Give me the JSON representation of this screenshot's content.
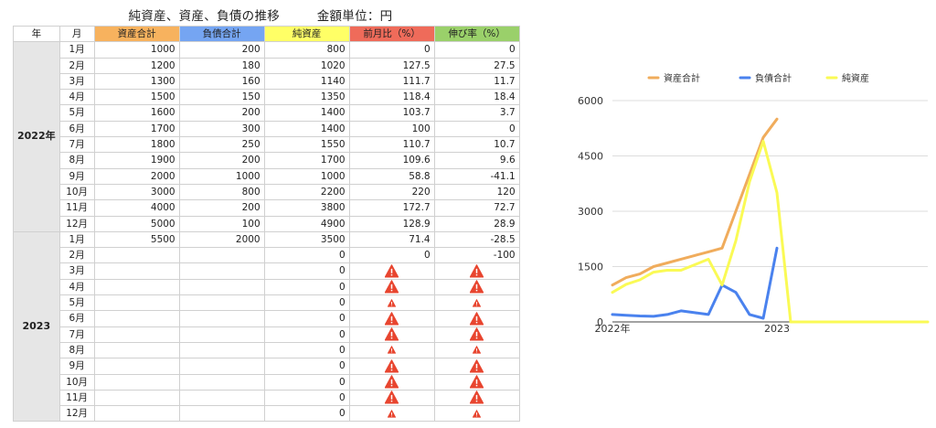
{
  "title": {
    "main": "純資産、資産、負債の推移",
    "unit": "金額単位：円"
  },
  "table": {
    "headers": {
      "year": "年",
      "month": "月",
      "assets": "資産合計",
      "liabilities": "負債合計",
      "net": "純資産",
      "mom": "前月比（%）",
      "growth": "伸び率（%）"
    },
    "years": [
      {
        "label": "2022年",
        "rows": [
          {
            "month": "1月",
            "assets": "1000",
            "liabilities": "200",
            "net": "800",
            "mom": "0",
            "growth": "0"
          },
          {
            "month": "2月",
            "assets": "1200",
            "liabilities": "180",
            "net": "1020",
            "mom": "127.5",
            "growth": "27.5"
          },
          {
            "month": "3月",
            "assets": "1300",
            "liabilities": "160",
            "net": "1140",
            "mom": "111.7",
            "growth": "11.7"
          },
          {
            "month": "4月",
            "assets": "1500",
            "liabilities": "150",
            "net": "1350",
            "mom": "118.4",
            "growth": "18.4"
          },
          {
            "month": "5月",
            "assets": "1600",
            "liabilities": "200",
            "net": "1400",
            "mom": "103.7",
            "growth": "3.7"
          },
          {
            "month": "6月",
            "assets": "1700",
            "liabilities": "300",
            "net": "1400",
            "mom": "100",
            "growth": "0"
          },
          {
            "month": "7月",
            "assets": "1800",
            "liabilities": "250",
            "net": "1550",
            "mom": "110.7",
            "growth": "10.7"
          },
          {
            "month": "8月",
            "assets": "1900",
            "liabilities": "200",
            "net": "1700",
            "mom": "109.6",
            "growth": "9.6"
          },
          {
            "month": "9月",
            "assets": "2000",
            "liabilities": "1000",
            "net": "1000",
            "mom": "58.8",
            "growth": "-41.1"
          },
          {
            "month": "10月",
            "assets": "3000",
            "liabilities": "800",
            "net": "2200",
            "mom": "220",
            "growth": "120"
          },
          {
            "month": "11月",
            "assets": "4000",
            "liabilities": "200",
            "net": "3800",
            "mom": "172.7",
            "growth": "72.7"
          },
          {
            "month": "12月",
            "assets": "5000",
            "liabilities": "100",
            "net": "4900",
            "mom": "128.9",
            "growth": "28.9"
          }
        ]
      },
      {
        "label": "2023",
        "rows": [
          {
            "month": "1月",
            "assets": "5500",
            "liabilities": "2000",
            "net": "3500",
            "mom": "71.4",
            "growth": "-28.5"
          },
          {
            "month": "2月",
            "assets": "",
            "liabilities": "",
            "net": "0",
            "mom": "0",
            "growth": "-100"
          },
          {
            "month": "3月",
            "assets": "",
            "liabilities": "",
            "net": "0",
            "mom": "warning-icon",
            "growth": "warning-icon"
          },
          {
            "month": "4月",
            "assets": "",
            "liabilities": "",
            "net": "0",
            "mom": "warning-icon",
            "growth": "warning-icon"
          },
          {
            "month": "5月",
            "assets": "",
            "liabilities": "",
            "net": "0",
            "mom": "warning-icon-small",
            "growth": "warning-icon-small"
          },
          {
            "month": "6月",
            "assets": "",
            "liabilities": "",
            "net": "0",
            "mom": "warning-icon",
            "growth": "warning-icon"
          },
          {
            "month": "7月",
            "assets": "",
            "liabilities": "",
            "net": "0",
            "mom": "warning-icon",
            "growth": "warning-icon"
          },
          {
            "month": "8月",
            "assets": "",
            "liabilities": "",
            "net": "0",
            "mom": "warning-icon-small",
            "growth": "warning-icon-small"
          },
          {
            "month": "9月",
            "assets": "",
            "liabilities": "",
            "net": "0",
            "mom": "warning-icon",
            "growth": "warning-icon"
          },
          {
            "month": "10月",
            "assets": "",
            "liabilities": "",
            "net": "0",
            "mom": "warning-icon",
            "growth": "warning-icon"
          },
          {
            "month": "11月",
            "assets": "",
            "liabilities": "",
            "net": "0",
            "mom": "warning-icon",
            "growth": "warning-icon"
          },
          {
            "month": "12月",
            "assets": "",
            "liabilities": "",
            "net": "0",
            "mom": "warning-icon-small",
            "growth": "warning-icon-small"
          }
        ]
      }
    ]
  },
  "colors": {
    "assets": "#f0ac5c",
    "liabilities": "#4a82ee",
    "net": "#fafa55",
    "warning": "#e8452f"
  },
  "chart_data": {
    "type": "line",
    "x": [
      "2022-01",
      "2022-02",
      "2022-03",
      "2022-04",
      "2022-05",
      "2022-06",
      "2022-07",
      "2022-08",
      "2022-09",
      "2022-10",
      "2022-11",
      "2022-12",
      "2023-01",
      "2023-02",
      "2023-03",
      "2023-04",
      "2023-05",
      "2023-06",
      "2023-07",
      "2023-08",
      "2023-09",
      "2023-10",
      "2023-11",
      "2023-12"
    ],
    "x_tick_labels": [
      {
        "at": "2022-01",
        "label": "2022年"
      },
      {
        "at": "2023-01",
        "label": "2023"
      }
    ],
    "series": [
      {
        "name": "資産合計",
        "color": "#f0ac5c",
        "values": [
          1000,
          1200,
          1300,
          1500,
          1600,
          1700,
          1800,
          1900,
          2000,
          3000,
          4000,
          5000,
          5500,
          null,
          null,
          null,
          null,
          null,
          null,
          null,
          null,
          null,
          null,
          null
        ]
      },
      {
        "name": "負債合計",
        "color": "#4a82ee",
        "values": [
          200,
          180,
          160,
          150,
          200,
          300,
          250,
          200,
          1000,
          800,
          200,
          100,
          2000,
          null,
          null,
          null,
          null,
          null,
          null,
          null,
          null,
          null,
          null,
          null
        ]
      },
      {
        "name": "純資産",
        "color": "#fafa55",
        "values": [
          800,
          1020,
          1140,
          1350,
          1400,
          1400,
          1550,
          1700,
          1000,
          2200,
          3800,
          4900,
          3500,
          0,
          0,
          0,
          0,
          0,
          0,
          0,
          0,
          0,
          0,
          0
        ]
      }
    ],
    "yticks": [
      0,
      1500,
      3000,
      4500,
      6000
    ],
    "ylim": [
      0,
      6000
    ],
    "grid": true,
    "legend": "top"
  }
}
